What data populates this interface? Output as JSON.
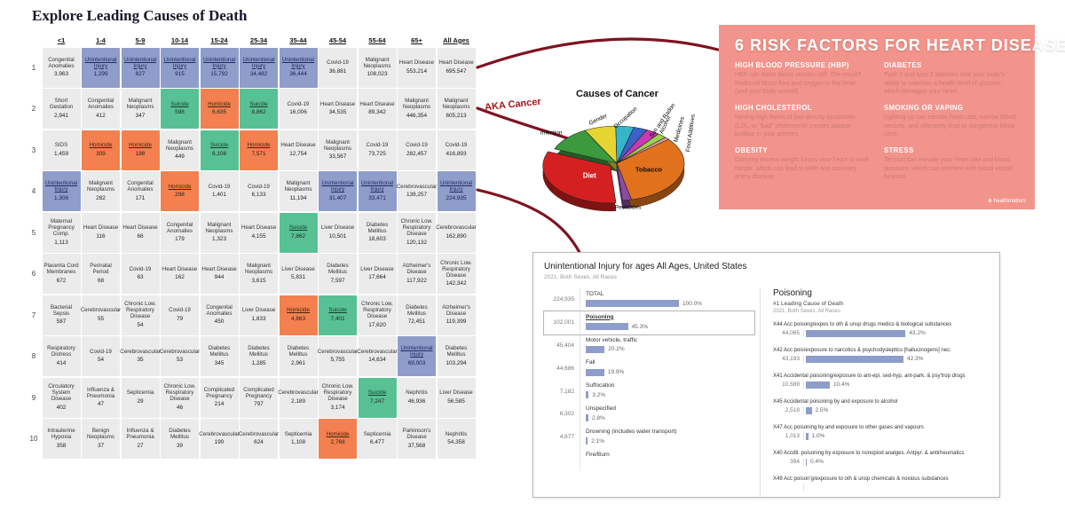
{
  "title": "Explore Leading Causes of Death",
  "annotations": {
    "aka_cancer": "AKA Cancer"
  },
  "colors": {
    "ui": "#8e9dc9",
    "homicide": "#f3804e",
    "suicide": "#58c194",
    "bar": "#8e9dc9",
    "connector": "#7e1220",
    "risk_bg": "#f2948b"
  },
  "risk_panel": {
    "title": "6 RISK FACTORS FOR HEART DISEASE",
    "footer": "⊕ healthmatters",
    "sections": [
      {
        "heading": "HIGH BLOOD PRESSURE (HBP)",
        "body": "HBP can make blood vessels stiff. The result? Reduced blood flow and oxygen to the heart (and your body overall)."
      },
      {
        "heading": "HIGH CHOLESTEROL",
        "body": "Having high levels of low-density lipoprotein (LDL, or \"bad\" cholesterol) creates plaque buildup in your arteries."
      },
      {
        "heading": "OBESITY",
        "body": "Carrying excess weight forces your heart to work harder, which can lead to HBP and coronary artery disease."
      },
      {
        "heading": "DIABETES",
        "body": "Type 1 and type 2 diabetes limit your body's ability to maintain a health level of glucose, which damages your heart."
      },
      {
        "heading": "SMOKING OR VAPING",
        "body": "Lighting up can elevate heart rate, narrow blood vessels, and ultimately lead to dangerous blood clots."
      },
      {
        "heading": "STRESS",
        "body": "Tension can elevate your heart rate and blood pressure, which can interfere with blood vessel function."
      }
    ]
  },
  "chart_data": [
    {
      "type": "table",
      "title": "Explore Leading Causes of Death",
      "columns": [
        "<1",
        "1-4",
        "5-9",
        "10-14",
        "15-24",
        "25-34",
        "35-44",
        "45-54",
        "55-64",
        "65+",
        "All Ages"
      ],
      "rows": [
        {
          "rank": "1",
          "cells": [
            {
              "l": "Congenital Anomalies",
              "v": "3,963"
            },
            {
              "l": "Unintentional Injury",
              "v": "1,299",
              "t": "ui"
            },
            {
              "l": "Unintentional Injury",
              "v": "827",
              "t": "ui"
            },
            {
              "l": "Unintentional Injury",
              "v": "915",
              "t": "ui"
            },
            {
              "l": "Unintentional Injury",
              "v": "15,792",
              "t": "ui"
            },
            {
              "l": "Unintentional Injury",
              "v": "34,482",
              "t": "ui"
            },
            {
              "l": "Unintentional Injury",
              "v": "36,444",
              "t": "ui"
            },
            {
              "l": "Covid-19",
              "v": "36,881"
            },
            {
              "l": "Malignant Neoplasms",
              "v": "108,023"
            },
            {
              "l": "Heart Disease",
              "v": "553,214"
            },
            {
              "l": "Heart Disease",
              "v": "695,547"
            }
          ]
        },
        {
          "rank": "2",
          "cells": [
            {
              "l": "Short Gestation",
              "v": "2,941"
            },
            {
              "l": "Congenital Anomalies",
              "v": "412"
            },
            {
              "l": "Malignant Neoplasms",
              "v": "347"
            },
            {
              "l": "Suicide",
              "v": "598",
              "t": "suicide"
            },
            {
              "l": "Homicide",
              "v": "6,635",
              "t": "homicide"
            },
            {
              "l": "Suicide",
              "v": "8,862",
              "t": "suicide"
            },
            {
              "l": "Covid-19",
              "v": "16,006"
            },
            {
              "l": "Heart Disease",
              "v": "34,535"
            },
            {
              "l": "Heart Disease",
              "v": "89,342"
            },
            {
              "l": "Malignant Neoplasms",
              "v": "446,354"
            },
            {
              "l": "Malignant Neoplasms",
              "v": "605,213"
            }
          ]
        },
        {
          "rank": "3",
          "cells": [
            {
              "l": "SIDS",
              "v": "1,459"
            },
            {
              "l": "Homicide",
              "v": "309",
              "t": "homicide"
            },
            {
              "l": "Homicide",
              "v": "188",
              "t": "homicide"
            },
            {
              "l": "Malignant Neoplasms",
              "v": "449"
            },
            {
              "l": "Suicide",
              "v": "6,108",
              "t": "suicide"
            },
            {
              "l": "Homicide",
              "v": "7,571",
              "t": "homicide"
            },
            {
              "l": "Heart Disease",
              "v": "12,754"
            },
            {
              "l": "Malignant Neoplasms",
              "v": "33,567"
            },
            {
              "l": "Covid-19",
              "v": "73,725"
            },
            {
              "l": "Covid-19",
              "v": "282,457"
            },
            {
              "l": "Covid-19",
              "v": "416,893"
            }
          ]
        },
        {
          "rank": "4",
          "cells": [
            {
              "l": "Unintentional Injury",
              "v": "1,306",
              "t": "ui"
            },
            {
              "l": "Malignant Neoplasms",
              "v": "282"
            },
            {
              "l": "Congenital Anomalies",
              "v": "171"
            },
            {
              "l": "Homicide",
              "v": "298",
              "t": "homicide"
            },
            {
              "l": "Covid-19",
              "v": "1,401"
            },
            {
              "l": "Covid-19",
              "v": "6,133"
            },
            {
              "l": "Malignant Neoplasms",
              "v": "11,194"
            },
            {
              "l": "Unintentional Injury",
              "v": "31,407",
              "t": "ui"
            },
            {
              "l": "Unintentional Injury",
              "v": "33,471",
              "t": "ui"
            },
            {
              "l": "Cerebrovascular",
              "v": "139,257"
            },
            {
              "l": "Unintentional Injury",
              "v": "224,935",
              "t": "ui"
            }
          ]
        },
        {
          "rank": "5",
          "cells": [
            {
              "l": "Maternal Pregnancy Comp.",
              "v": "1,113"
            },
            {
              "l": "Heart Disease",
              "v": "116"
            },
            {
              "l": "Heart Disease",
              "v": "66"
            },
            {
              "l": "Congenital Anomalies",
              "v": "179"
            },
            {
              "l": "Malignant Neoplasms",
              "v": "1,323"
            },
            {
              "l": "Heart Disease",
              "v": "4,155"
            },
            {
              "l": "Suicide",
              "v": "7,862",
              "t": "suicide"
            },
            {
              "l": "Liver Disease",
              "v": "10,501"
            },
            {
              "l": "Diabetes Mellitus",
              "v": "18,603"
            },
            {
              "l": "Chronic Low. Respiratory Disease",
              "v": "120,132"
            },
            {
              "l": "Cerebrovascular",
              "v": "162,890"
            }
          ]
        },
        {
          "rank": "6",
          "cells": [
            {
              "l": "Placenta Cord Membranes",
              "v": "672"
            },
            {
              "l": "Perinatal Period",
              "v": "68"
            },
            {
              "l": "Covid-19",
              "v": "63"
            },
            {
              "l": "Heart Disease",
              "v": "162"
            },
            {
              "l": "Heart Disease",
              "v": "944"
            },
            {
              "l": "Malignant Neoplasms",
              "v": "3,615"
            },
            {
              "l": "Liver Disease",
              "v": "5,831"
            },
            {
              "l": "Diabetes Mellitus",
              "v": "7,597"
            },
            {
              "l": "Liver Disease",
              "v": "17,664"
            },
            {
              "l": "Alzheimer's Disease",
              "v": "117,922"
            },
            {
              "l": "Chronic Low. Respiratory Disease",
              "v": "142,342"
            }
          ]
        },
        {
          "rank": "7",
          "cells": [
            {
              "l": "Bacterial Sepsis",
              "v": "587"
            },
            {
              "l": "Cerebrovascular",
              "v": "55"
            },
            {
              "l": "Chronic Low. Respiratory Disease",
              "v": "54"
            },
            {
              "l": "Covid-19",
              "v": "79"
            },
            {
              "l": "Congenital Anomalies",
              "v": "450"
            },
            {
              "l": "Liver Disease",
              "v": "1,833"
            },
            {
              "l": "Homicide",
              "v": "4,863",
              "t": "homicide"
            },
            {
              "l": "Suicide",
              "v": "7,401",
              "t": "suicide"
            },
            {
              "l": "Chronic Low. Respiratory Disease",
              "v": "17,620"
            },
            {
              "l": "Diabetes Mellitus",
              "v": "72,451"
            },
            {
              "l": "Alzheimer's Disease",
              "v": "119,399"
            }
          ]
        },
        {
          "rank": "8",
          "cells": [
            {
              "l": "Respiratory Distress",
              "v": "414"
            },
            {
              "l": "Covid-19",
              "v": "54"
            },
            {
              "l": "Cerebrovascular",
              "v": "35"
            },
            {
              "l": "Cerebrovascular",
              "v": "53"
            },
            {
              "l": "Diabetes Mellitus",
              "v": "345"
            },
            {
              "l": "Diabetes Mellitus",
              "v": "1,285"
            },
            {
              "l": "Diabetes Mellitus",
              "v": "2,961"
            },
            {
              "l": "Cerebrovascular",
              "v": "5,755"
            },
            {
              "l": "Cerebrovascular",
              "v": "14,634"
            },
            {
              "l": "Unintentional Injury",
              "v": "69,003",
              "t": "ui"
            },
            {
              "l": "Diabetes Mellitus",
              "v": "103,294"
            }
          ]
        },
        {
          "rank": "9",
          "cells": [
            {
              "l": "Circulatory System Disease",
              "v": "402"
            },
            {
              "l": "Influenza & Pneumonia",
              "v": "47"
            },
            {
              "l": "Septicemia",
              "v": "29"
            },
            {
              "l": "Chronic Low. Respiratory Disease",
              "v": "46"
            },
            {
              "l": "Complicated Pregnancy",
              "v": "214"
            },
            {
              "l": "Complicated Pregnancy",
              "v": "797"
            },
            {
              "l": "Cerebrovascular",
              "v": "2,189"
            },
            {
              "l": "Chronic Low. Respiratory Disease",
              "v": "3,174"
            },
            {
              "l": "Suicide",
              "v": "7,247",
              "t": "suicide"
            },
            {
              "l": "Nephritis",
              "v": "46,936"
            },
            {
              "l": "Liver Disease",
              "v": "56,585"
            }
          ]
        },
        {
          "rank": "10",
          "cells": [
            {
              "l": "Intrauterine Hypoxia",
              "v": "358"
            },
            {
              "l": "Benign Neoplasms",
              "v": "37"
            },
            {
              "l": "Influenza & Pneumonia",
              "v": "27"
            },
            {
              "l": "Diabetes Mellitus",
              "v": "39"
            },
            {
              "l": "Cerebrovascular",
              "v": "190"
            },
            {
              "l": "Cerebrovascular",
              "v": "624"
            },
            {
              "l": "Septicemia",
              "v": "1,108"
            },
            {
              "l": "Homicide",
              "v": "2,768",
              "t": "homicide"
            },
            {
              "l": "Septicemia",
              "v": "6,477"
            },
            {
              "l": "Parkinson's Disease",
              "v": "37,568"
            },
            {
              "l": "Nephritis",
              "v": "54,358"
            }
          ]
        }
      ]
    },
    {
      "type": "pie",
      "title": "Causes of Cancer",
      "note": "slice values are visual estimates (percent)",
      "slices": [
        {
          "label": "Tobacco",
          "value": 30,
          "color": "#e2711d"
        },
        {
          "label": "Pesticides",
          "value": 2,
          "color": "#8a4ba0"
        },
        {
          "label": "Diet",
          "value": 30,
          "color": "#d42020"
        },
        {
          "label": "Infection",
          "value": 10,
          "color": "#3a9a3d"
        },
        {
          "label": "Gender",
          "value": 7,
          "color": "#e5d431"
        },
        {
          "label": "Occupation",
          "value": 4,
          "color": "#35b6c9"
        },
        {
          "label": "Sun and Radon",
          "value": 3,
          "color": "#3a62c9"
        },
        {
          "label": "Alcohol",
          "value": 3,
          "color": "#c93ab0"
        },
        {
          "label": "Medicines",
          "value": 2,
          "color": "#9ad14b"
        },
        {
          "label": "Food Additives",
          "value": 1,
          "color": "#e89aa8"
        }
      ]
    },
    {
      "type": "bar",
      "orientation": "horizontal",
      "title": "Unintentional Injury for ages All Ages, United States",
      "subtitle": "2021, Both Sexes, All Races",
      "rows": [
        {
          "label": "TOTAL",
          "value": "224,935",
          "pct": 100.0,
          "pct_label": "100.0%"
        },
        {
          "label": "Poisoning",
          "value": "102,001",
          "pct": 45.3,
          "pct_label": "45.3%",
          "selected": true
        },
        {
          "label": "Motor vehicle, traffic",
          "value": "45,404",
          "pct": 20.2,
          "pct_label": "20.2%"
        },
        {
          "label": "Fall",
          "value": "44,686",
          "pct": 19.9,
          "pct_label": "19.9%"
        },
        {
          "label": "Suffocation",
          "value": "7,182",
          "pct": 3.2,
          "pct_label": "3.2%"
        },
        {
          "label": "Unspecified",
          "value": "6,302",
          "pct": 2.8,
          "pct_label": "2.8%"
        },
        {
          "label": "Drowning (includes water transport)",
          "value": "4,677",
          "pct": 2.1,
          "pct_label": "2.1%"
        },
        {
          "label": "Fire/Burn",
          "value": "",
          "pct": 0,
          "pct_label": ""
        }
      ]
    },
    {
      "type": "bar",
      "orientation": "horizontal",
      "title": "Poisoning",
      "subtitle1": "#1 Leading Cause of Death",
      "subtitle2": "2021, Both Sexes, All Races",
      "rows": [
        {
          "label": "X44 Acc poisong/expos to oth & unsp drugs medics & biological substances",
          "value": "44,065",
          "pct": 43.2,
          "pct_label": "43.2%"
        },
        {
          "label": "X42 Acc pois/exposure to narcotics & psychodysleptics [hallucinogens] nec.",
          "value": "43,193",
          "pct": 42.3,
          "pct_label": "42.3%"
        },
        {
          "label": "X41 Accidental poisoning/exposure to ant-epi. sed-hyp. ant-park. & psy'trop drugs",
          "value": "10,589",
          "pct": 10.4,
          "pct_label": "10.4%"
        },
        {
          "label": "X45 Accidental poisoning by and exposure to alcohol",
          "value": "2,518",
          "pct": 2.5,
          "pct_label": "2.5%"
        },
        {
          "label": "X47 Acc poisoning by and exposure to other gases and vapours",
          "value": "1,013",
          "pct": 1.0,
          "pct_label": "1.0%"
        },
        {
          "label": "X40 Accdtl. poisoning by exposure to nonopiod analges. Antpyr. & antirheumatics",
          "value": "394",
          "pct": 0.4,
          "pct_label": "0.4%"
        },
        {
          "label": "X49 Acc poison'g/exposure to oth & unsp chemicals & noxious substances",
          "value": "",
          "pct": 0,
          "pct_label": ""
        }
      ]
    }
  ]
}
